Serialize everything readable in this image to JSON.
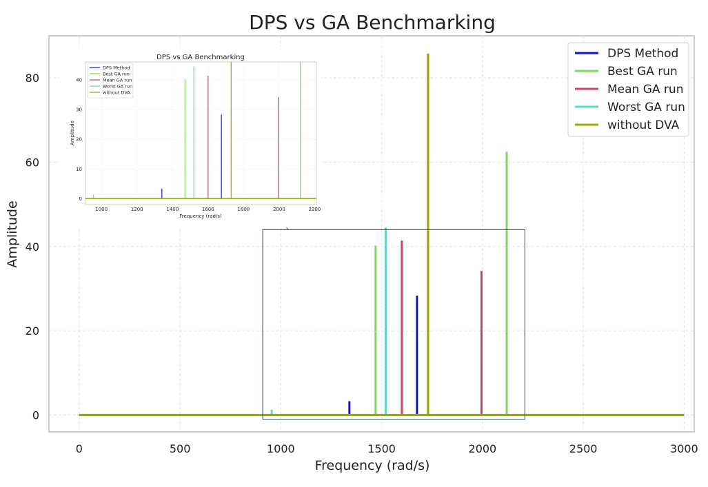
{
  "chart_data": {
    "type": "line",
    "title": "DPS vs GA Benchmarking",
    "xlabel": "Frequency (rad/s)",
    "ylabel": "Amplitude",
    "xlim": [
      -150,
      3050
    ],
    "ylim": [
      -4,
      90
    ],
    "xticks": [
      0,
      500,
      1000,
      1500,
      2000,
      2500,
      3000
    ],
    "yticks": [
      0,
      20,
      40,
      60,
      80
    ],
    "grid": true,
    "legend_position": "top-right",
    "baseline": 0,
    "x_range": [
      0,
      3000
    ],
    "series": [
      {
        "name": "DPS Method",
        "color": "#0a14e6",
        "peaks": [
          {
            "x": 1340,
            "y": 3.3
          },
          {
            "x": 1675,
            "y": 28.3
          }
        ]
      },
      {
        "name": "Best GA run",
        "color": "#7fd860",
        "peaks": [
          {
            "x": 1470,
            "y": 40.2
          },
          {
            "x": 2120,
            "y": 62.5
          }
        ]
      },
      {
        "name": "Mean GA run",
        "color": "#c8446e",
        "peaks": [
          {
            "x": 1600,
            "y": 41.4
          },
          {
            "x": 1995,
            "y": 34.2
          }
        ]
      },
      {
        "name": "Worst GA run",
        "color": "#5fd6cc",
        "peaks": [
          {
            "x": 955,
            "y": 1.3
          },
          {
            "x": 1520,
            "y": 44.5
          }
        ]
      },
      {
        "name": "without DVA",
        "color": "#9aa80a",
        "peaks": [
          {
            "x": 1730,
            "y": 85.8
          }
        ]
      }
    ],
    "inset": {
      "title": "DPS vs GA Benchmarking",
      "xlabel": "Frequency (rad/s)",
      "ylabel": "Amplitude",
      "xlim": [
        910,
        2210
      ],
      "ylim": [
        -2,
        46
      ],
      "xticks": [
        1000,
        1200,
        1400,
        1600,
        1800,
        2000,
        2200
      ],
      "yticks": [
        0,
        10,
        20,
        30,
        40
      ],
      "legend_position": "top-left",
      "zoom_box": {
        "x": [
          910,
          2210
        ],
        "y": [
          -1,
          44
        ]
      }
    }
  }
}
